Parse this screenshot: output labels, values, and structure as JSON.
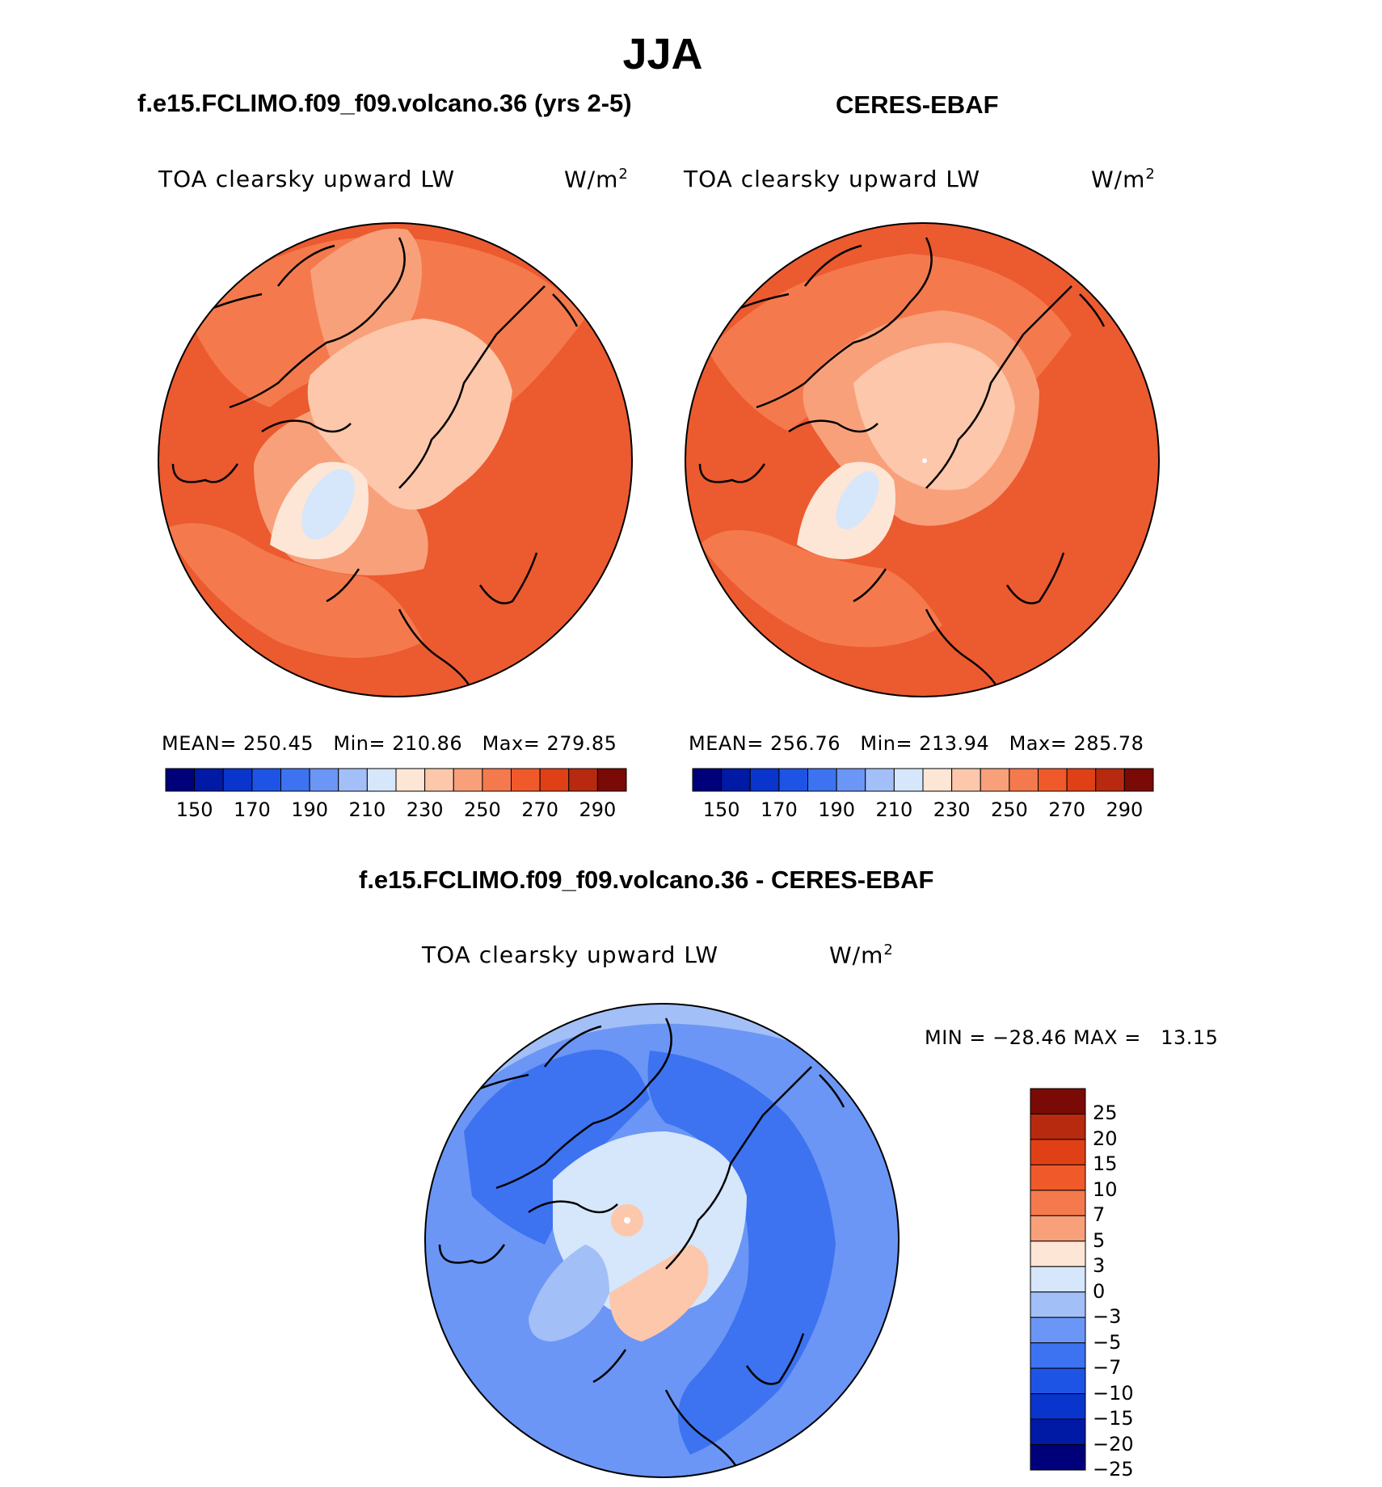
{
  "title": "JJA",
  "panels": [
    {
      "title": "f.e15.FCLIMO.f09_f09.volcano.36 (yrs 2-5)",
      "variable": "TOA clearsky upward LW",
      "units_base": "W/m",
      "units_exp": "2",
      "stats": {
        "mean_label": "MEAN=",
        "mean": "250.45",
        "min_label": "Min=",
        "min": "210.86",
        "max_label": "Max=",
        "max": "279.85"
      }
    },
    {
      "title": "CERES-EBAF",
      "variable": "TOA clearsky upward LW",
      "units_base": "W/m",
      "units_exp": "2",
      "stats": {
        "mean_label": "MEAN=",
        "mean": "256.76",
        "min_label": "Min=",
        "min": "213.94",
        "max_label": "Max=",
        "max": "285.78"
      }
    }
  ],
  "abs_colorbar": {
    "colors": [
      "#00007a",
      "#001aa6",
      "#0a35cc",
      "#1e54e6",
      "#3d73f0",
      "#6b96f5",
      "#a3bff7",
      "#d6e6fb",
      "#fde6d6",
      "#fcc7aa",
      "#f8a07a",
      "#f47a4e",
      "#f05a2a",
      "#e04015",
      "#b82a0f",
      "#7a0a05"
    ],
    "ticks": [
      "150",
      "170",
      "190",
      "210",
      "230",
      "250",
      "270",
      "290"
    ]
  },
  "diff_panel": {
    "title": "f.e15.FCLIMO.f09_f09.volcano.36 - CERES-EBAF",
    "variable": "TOA clearsky upward LW",
    "units_base": "W/m",
    "units_exp": "2",
    "minmax": "MIN = −28.46 MAX =   13.15"
  },
  "diff_colorbar": {
    "colors": [
      "#7a0a05",
      "#b82a0f",
      "#e04015",
      "#f05a2a",
      "#f47a4e",
      "#f8a07a",
      "#fde6d6",
      "#d6e6fb",
      "#a3bff7",
      "#6b96f5",
      "#3d73f0",
      "#1e54e6",
      "#0a35cc",
      "#001aa6",
      "#00007a"
    ],
    "ticks": [
      "25",
      "20",
      "15",
      "10",
      "7",
      "5",
      "3",
      "0",
      "−3",
      "−5",
      "−7",
      "−10",
      "−15",
      "−20",
      "−25"
    ]
  },
  "map_colors": {
    "abs_outer": "#ec5a30",
    "abs_mid": "#f47a4e",
    "abs_inner": "#f8a07a",
    "abs_pole": "#fcc7aa",
    "abs_greenland": "#fde6d6",
    "abs_ice": "#d6e6fb",
    "diff_outer": "#6b96f5",
    "diff_ring": "#3d73f0",
    "diff_inner": "#a3bff7",
    "diff_pole": "#d6e6fb",
    "diff_warm": "#fcc7aa"
  }
}
